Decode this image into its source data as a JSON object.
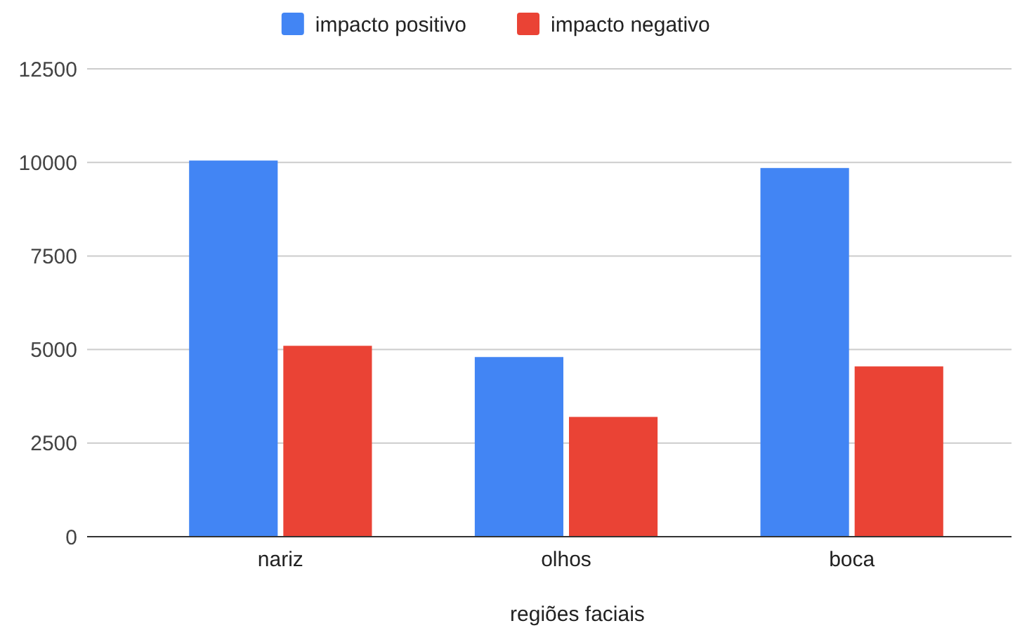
{
  "chart_data": {
    "type": "bar",
    "xlabel": "regiões faciais",
    "categories": [
      "nariz",
      "olhos",
      "boca"
    ],
    "series": [
      {
        "name": "impacto positivo",
        "color": "#4285f4",
        "values": [
          10050,
          4800,
          9850
        ]
      },
      {
        "name": "impacto negativo",
        "color": "#ea4335",
        "values": [
          5100,
          3200,
          4550
        ]
      }
    ],
    "ylim": [
      0,
      12500
    ],
    "yticks": [
      0,
      2500,
      5000,
      7500,
      10000,
      12500
    ],
    "grid": "y",
    "legend": "top"
  }
}
